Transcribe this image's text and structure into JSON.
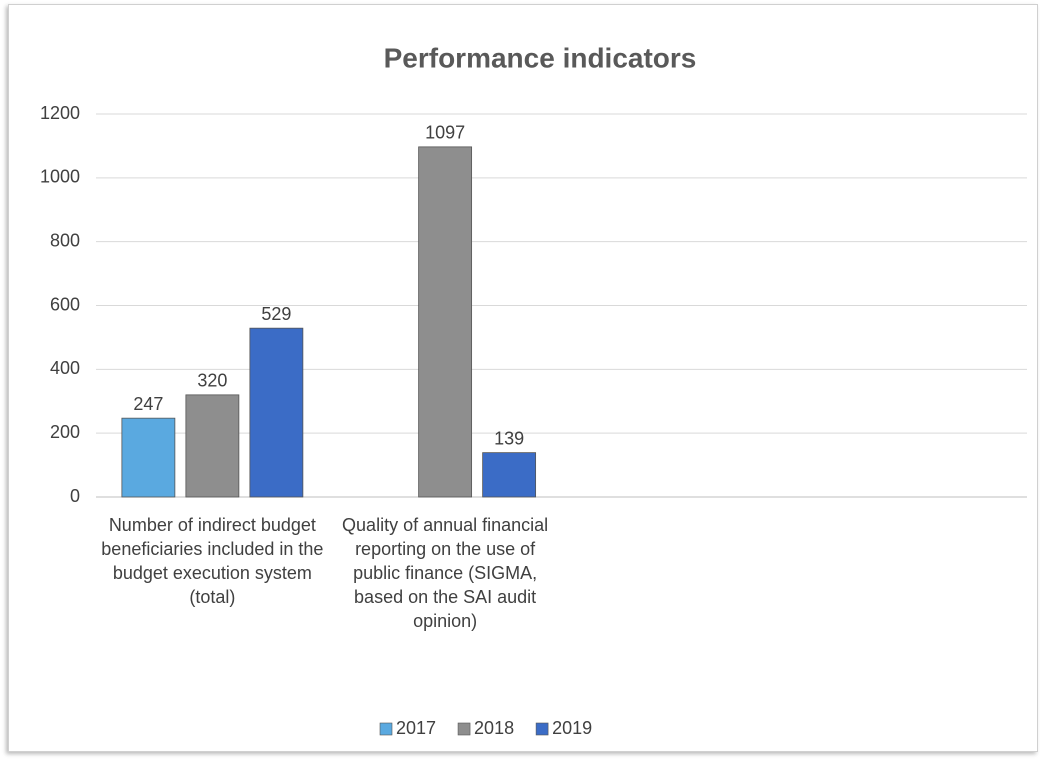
{
  "chart_data": {
    "type": "bar",
    "title": "Performance indicators",
    "categories": [
      "Number of indirect budget beneficiaries included in the budget execution system (total)",
      "Quality of annual financial reporting on the use of public finance (SIGMA, based on the SAI audit opinion)",
      null,
      null
    ],
    "series": [
      {
        "name": "2017",
        "color": "#5aa9e0",
        "values": [
          247,
          null,
          null,
          null
        ]
      },
      {
        "name": "2018",
        "color": "#8e8e8e",
        "values": [
          320,
          1097,
          null,
          null
        ]
      },
      {
        "name": "2019",
        "color": "#3b6cc6",
        "values": [
          529,
          139,
          null,
          null
        ]
      }
    ],
    "ylim": [
      0,
      1200
    ],
    "yticks": [
      0,
      200,
      400,
      600,
      800,
      1000,
      1200
    ],
    "grid": true,
    "legend": "bottom"
  }
}
